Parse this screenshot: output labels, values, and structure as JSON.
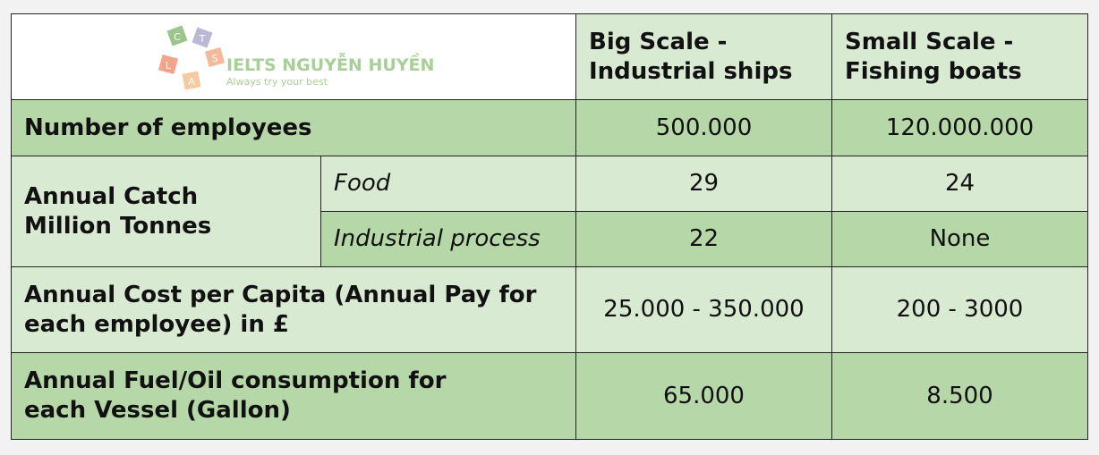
{
  "logo": {
    "letters": [
      "C",
      "T",
      "S",
      "L",
      "A"
    ],
    "name": "IELTS NGUYỄN HUYỀN",
    "slogan": "Always try your best"
  },
  "table": {
    "columns": [
      "Big Scale - Industrial ships",
      "Small Scale - Fishing boats"
    ],
    "rows": [
      {
        "label": "Number of employees",
        "values": [
          "500.000",
          "120.000.000"
        ]
      },
      {
        "label": "Annual Catch Million Tonnes",
        "sub_rows": [
          {
            "label": "Food",
            "values": [
              "29",
              "24"
            ]
          },
          {
            "label": "Industrial process",
            "values": [
              "22",
              "None"
            ]
          }
        ]
      },
      {
        "label": "Annual Cost per Capita (Annual Pay for each employee) in £",
        "values": [
          "25.000 - 350.000",
          "200 - 3000"
        ]
      },
      {
        "label": "Annual Fuel/Oil consumption for each Vessel (Gallon)",
        "values": [
          "65.000",
          "8.500"
        ]
      }
    ]
  }
}
